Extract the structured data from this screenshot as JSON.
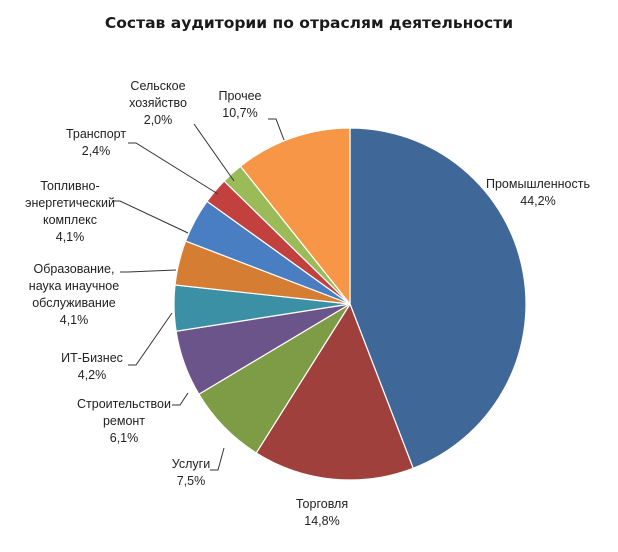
{
  "chart_data": {
    "type": "pie",
    "title": "Состав аудитории по отраслям деятельности",
    "legend": "none",
    "slices": [
      {
        "label_lines": [
          "Промышленность"
        ],
        "pct_label": "44,2%",
        "value": 44.2,
        "color": "#3F6797"
      },
      {
        "label_lines": [
          "Торговля"
        ],
        "pct_label": "14,8%",
        "value": 14.8,
        "color": "#A0403D"
      },
      {
        "label_lines": [
          "Услуги"
        ],
        "pct_label": "7,5%",
        "value": 7.5,
        "color": "#7E9C45"
      },
      {
        "label_lines": [
          "Строительствои",
          "ремонт"
        ],
        "pct_label": "6,1%",
        "value": 6.1,
        "color": "#6B548A"
      },
      {
        "label_lines": [
          "ИТ-Бизнес"
        ],
        "pct_label": "4,2%",
        "value": 4.2,
        "color": "#3C90A6"
      },
      {
        "label_lines": [
          "Образование,",
          "наука инаучное",
          "обслуживание"
        ],
        "pct_label": "4,1%",
        "value": 4.1,
        "color": "#D67D34"
      },
      {
        "label_lines": [
          "Топливно-",
          "энергетический",
          "комплекс"
        ],
        "pct_label": "4,1%",
        "value": 4.1,
        "color": "#4A7EC2"
      },
      {
        "label_lines": [
          "Транспорт"
        ],
        "pct_label": "2,4%",
        "value": 2.4,
        "color": "#C2413F"
      },
      {
        "label_lines": [
          "Сельское",
          "хозяйство"
        ],
        "pct_label": "2,0%",
        "value": 2.0,
        "color": "#9BBB59"
      },
      {
        "label_lines": [
          "Прочее"
        ],
        "pct_label": "10,7%",
        "value": 10.7,
        "color": "#F79646"
      }
    ]
  }
}
